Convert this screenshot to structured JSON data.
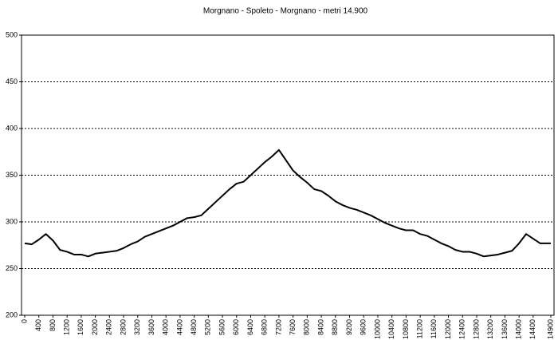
{
  "chart_data": {
    "type": "line",
    "title": "Morgnano - Spoleto - Morgnano - metri 14.900",
    "x": [
      0,
      200,
      400,
      600,
      800,
      1000,
      1200,
      1400,
      1600,
      1800,
      2000,
      2200,
      2400,
      2600,
      2800,
      3000,
      3200,
      3400,
      3600,
      3800,
      4000,
      4200,
      4400,
      4600,
      4800,
      5000,
      5200,
      5400,
      5600,
      5800,
      6000,
      6200,
      6400,
      6600,
      6800,
      7000,
      7200,
      7400,
      7600,
      7800,
      8000,
      8200,
      8400,
      8600,
      8800,
      9000,
      9200,
      9400,
      9600,
      9800,
      10000,
      10200,
      10400,
      10600,
      10800,
      11000,
      11200,
      11400,
      11600,
      11800,
      12000,
      12200,
      12400,
      12600,
      12800,
      13000,
      13200,
      13400,
      13600,
      13800,
      14000,
      14200,
      14400,
      14600,
      14800,
      14900
    ],
    "values": [
      277,
      276,
      281,
      287,
      280,
      270,
      268,
      265,
      265,
      263,
      266,
      267,
      268,
      269,
      272,
      276,
      279,
      284,
      287,
      290,
      293,
      296,
      300,
      304,
      305,
      307,
      314,
      321,
      328,
      335,
      341,
      343,
      350,
      357,
      364,
      370,
      377,
      366,
      355,
      348,
      342,
      335,
      333,
      328,
      322,
      318,
      315,
      313,
      310,
      307,
      303,
      299,
      296,
      293,
      291,
      291,
      287,
      285,
      281,
      277,
      274,
      270,
      268,
      268,
      266,
      263,
      264,
      265,
      267,
      269,
      277,
      287,
      282,
      277,
      277,
      277
    ],
    "color": "#000000",
    "xlim": [
      0,
      14900
    ],
    "xticks": [
      0,
      400,
      800,
      1200,
      1600,
      2000,
      2400,
      2800,
      3200,
      3600,
      4000,
      4400,
      4800,
      5200,
      5600,
      6000,
      6400,
      6800,
      7200,
      7600,
      8000,
      8400,
      8800,
      9200,
      9600,
      10000,
      10400,
      10800,
      11200,
      11600,
      12000,
      12400,
      12800,
      13200,
      13600,
      14000,
      14400,
      14900
    ],
    "ylim": [
      200,
      500
    ],
    "yticks": [
      200,
      250,
      300,
      350,
      400,
      450,
      500
    ],
    "grid": true
  }
}
